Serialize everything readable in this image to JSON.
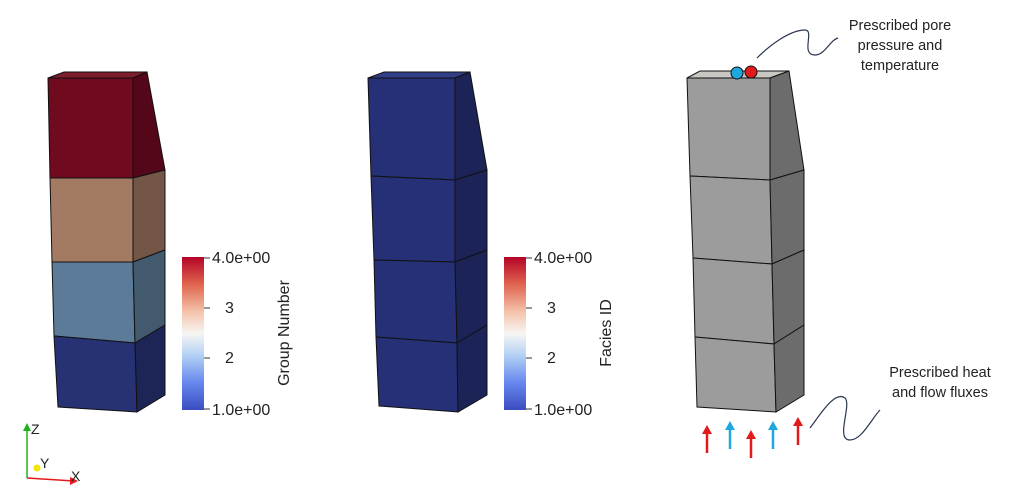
{
  "colors": {
    "group4": "#700a1e",
    "group4_side": "#55071a",
    "group4_top": "#7e1d2c",
    "group3": "#a37a62",
    "group3_side": "#735646",
    "group2": "#5b7b98",
    "group2_side": "#435a6e",
    "group1": "#263274",
    "group1_side": "#1c2556",
    "facies": "#253077",
    "facies_side": "#1c2457",
    "facies_top": "#323e88",
    "grey": "#9c9c9c",
    "grey_side": "#6c6c6c",
    "grey_top": "#c9c7c2",
    "arrow_red": "#e31a1c",
    "arrow_blue": "#1fa7e0",
    "dot_blue": "#1fa7e0",
    "dot_red": "#e31a1c",
    "callout_line": "#2a3550",
    "axis_z": "#1db21d",
    "axis_x": "#e31a1c",
    "axis_y": "#f2e500"
  },
  "colorbar_group": {
    "title": "Group Number",
    "max_label": "4.0e+00",
    "tick_3": "3",
    "tick_2": "2",
    "min_label": "1.0e+00",
    "min": 1,
    "max": 4
  },
  "colorbar_facies": {
    "title": "Facies ID",
    "max_label": "4.0e+00",
    "tick_3": "3",
    "tick_2": "2",
    "min_label": "1.0e+00",
    "min": 1,
    "max": 4
  },
  "annotations": {
    "top_line1": "Prescribed pore",
    "top_line2": "pressure and",
    "top_line3": "temperature",
    "bottom_line1": "Prescribed heat",
    "bottom_line2": "and flow fluxes"
  },
  "axes": {
    "z": "Z",
    "y": "Y",
    "x": "X"
  },
  "flux_arrows": [
    "red",
    "blue",
    "red",
    "blue",
    "red"
  ]
}
